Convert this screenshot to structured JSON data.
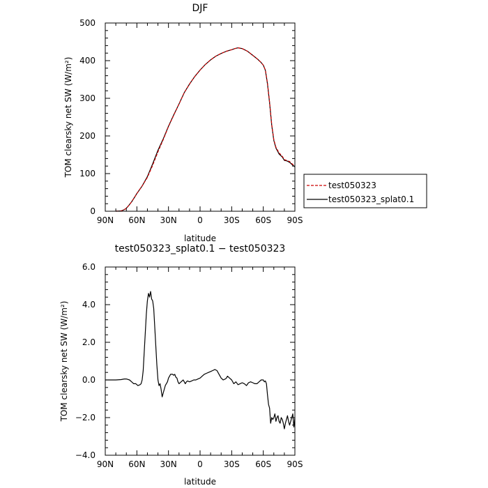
{
  "chart_data": [
    {
      "type": "line",
      "title": "DJF",
      "xlabel": "latitude",
      "ylabel": "TOM clearsky net SW (W/m²)",
      "xlim": [
        90,
        -90
      ],
      "ylim": [
        0,
        500
      ],
      "xticks": [
        90,
        60,
        30,
        0,
        -30,
        -60,
        -90
      ],
      "xtick_labels": [
        "90N",
        "60N",
        "30N",
        "0",
        "30S",
        "60S",
        "90S"
      ],
      "yticks": [
        0,
        100,
        200,
        300,
        400,
        500
      ],
      "ytick_labels": [
        "0",
        "100",
        "200",
        "300",
        "400",
        "500"
      ],
      "grid": false,
      "legend_position": "right",
      "series": [
        {
          "name": "test050323",
          "color": "#cc0000",
          "style": "dashed",
          "x": [
            80,
            75,
            72,
            70,
            68,
            65,
            62,
            60,
            55,
            50,
            45,
            40,
            35,
            30,
            25,
            20,
            15,
            10,
            5,
            0,
            -5,
            -10,
            -15,
            -20,
            -25,
            -30,
            -33,
            -36,
            -40,
            -45,
            -50,
            -55,
            -58,
            -60,
            -62,
            -64,
            -66,
            -68,
            -70,
            -72,
            -75,
            -78,
            -80,
            -82,
            -85,
            -88,
            -90
          ],
          "values": [
            0,
            1,
            4,
            8,
            14,
            25,
            38,
            47,
            67,
            90,
            122,
            158,
            190,
            225,
            255,
            285,
            315,
            338,
            358,
            375,
            390,
            402,
            412,
            419,
            425,
            429,
            432,
            434,
            432,
            425,
            414,
            403,
            395,
            388,
            375,
            340,
            290,
            230,
            190,
            170,
            155,
            146,
            137,
            135,
            132,
            124,
            120
          ]
        },
        {
          "name": "test050323_splat0.1",
          "color": "#000000",
          "style": "solid",
          "x": [
            80,
            75,
            72,
            70,
            68,
            65,
            62,
            60,
            55,
            50,
            45,
            40,
            35,
            30,
            25,
            20,
            15,
            10,
            5,
            0,
            -5,
            -10,
            -15,
            -20,
            -25,
            -30,
            -33,
            -36,
            -40,
            -45,
            -50,
            -55,
            -58,
            -60,
            -62,
            -64,
            -66,
            -68,
            -70,
            -72,
            -75,
            -78,
            -80,
            -82,
            -85,
            -88,
            -90
          ],
          "values": [
            0,
            1,
            4,
            8,
            14,
            25,
            38,
            47,
            67,
            92,
            126,
            162,
            192,
            226,
            256,
            285,
            315,
            338,
            358,
            375,
            390,
            402,
            412,
            419,
            425,
            429,
            432,
            434,
            432,
            425,
            414,
            403,
            395,
            388,
            374,
            338,
            288,
            228,
            188,
            168,
            152,
            144,
            135,
            134,
            130,
            122,
            118
          ]
        }
      ]
    },
    {
      "type": "line",
      "title": "test050323_splat0.1 − test050323",
      "xlabel": "latitude",
      "ylabel": "TOM clearsky net SW (W/m²)",
      "xlim": [
        90,
        -90
      ],
      "ylim": [
        -4.0,
        6.0
      ],
      "xticks": [
        90,
        60,
        30,
        0,
        -30,
        -60,
        -90
      ],
      "xtick_labels": [
        "90N",
        "60N",
        "30N",
        "0",
        "30S",
        "60S",
        "90S"
      ],
      "yticks": [
        -4.0,
        -2.0,
        0.0,
        2.0,
        4.0,
        6.0
      ],
      "ytick_labels": [
        "−4.0",
        "−2.0",
        "0.0",
        "2.0",
        "4.0",
        "6.0"
      ],
      "grid": false,
      "series": [
        {
          "color": "#000000",
          "style": "solid",
          "x": [
            90,
            85,
            80,
            75,
            72,
            70,
            67,
            65,
            63,
            61,
            59,
            57,
            56,
            55,
            54,
            53,
            52,
            51,
            50,
            49,
            48,
            47,
            46,
            45,
            44,
            43,
            42,
            41,
            40,
            39,
            38,
            37,
            36,
            35,
            34,
            33,
            32,
            31,
            30,
            28,
            26,
            25,
            24,
            23,
            22,
            21,
            20,
            18,
            16,
            15,
            14,
            13,
            12,
            10,
            8,
            6,
            4,
            2,
            0,
            -2,
            -4,
            -6,
            -8,
            -10,
            -12,
            -14,
            -16,
            -18,
            -20,
            -22,
            -24,
            -25,
            -26,
            -28,
            -30,
            -32,
            -34,
            -36,
            -38,
            -40,
            -42,
            -44,
            -46,
            -48,
            -50,
            -52,
            -54,
            -56,
            -58,
            -60,
            -61,
            -62,
            -63,
            -64,
            -65,
            -66,
            -67,
            -68,
            -69,
            -70,
            -71,
            -72,
            -73,
            -74,
            -75,
            -76,
            -77,
            -78,
            -79,
            -80,
            -81,
            -82,
            -83,
            -84,
            -85,
            -86,
            -87,
            -88,
            -89,
            -90
          ],
          "values": [
            0.0,
            0.0,
            0.0,
            0.02,
            0.05,
            0.05,
            0.0,
            -0.1,
            -0.2,
            -0.2,
            -0.3,
            -0.25,
            -0.2,
            0.0,
            0.5,
            1.5,
            2.5,
            3.5,
            4.2,
            4.6,
            4.4,
            4.7,
            4.3,
            4.2,
            3.8,
            2.8,
            1.8,
            0.8,
            0.0,
            -0.3,
            -0.2,
            -0.5,
            -0.9,
            -0.7,
            -0.5,
            -0.3,
            -0.2,
            -0.1,
            0.1,
            0.3,
            0.3,
            0.25,
            0.3,
            0.15,
            0.1,
            -0.1,
            -0.2,
            -0.1,
            0.0,
            -0.1,
            -0.2,
            -0.1,
            -0.05,
            -0.1,
            -0.05,
            0.0,
            0.0,
            0.05,
            0.1,
            0.2,
            0.3,
            0.35,
            0.4,
            0.45,
            0.5,
            0.55,
            0.5,
            0.3,
            0.1,
            0.0,
            0.05,
            0.1,
            0.2,
            0.1,
            0.0,
            -0.2,
            -0.1,
            -0.25,
            -0.2,
            -0.15,
            -0.2,
            -0.3,
            -0.15,
            -0.1,
            -0.15,
            -0.2,
            -0.2,
            -0.1,
            0.0,
            0.0,
            -0.1,
            -0.05,
            -0.2,
            -0.8,
            -1.3,
            -1.5,
            -2.3,
            -2.0,
            -2.1,
            -2.0,
            -1.8,
            -2.2,
            -2.0,
            -1.9,
            -2.2,
            -2.3,
            -2.0,
            -2.1,
            -2.3,
            -2.6,
            -2.3,
            -2.1,
            -1.9,
            -2.2,
            -2.4,
            -2.2,
            -2.0,
            -1.8,
            -2.5,
            -2.0
          ]
        }
      ]
    }
  ]
}
